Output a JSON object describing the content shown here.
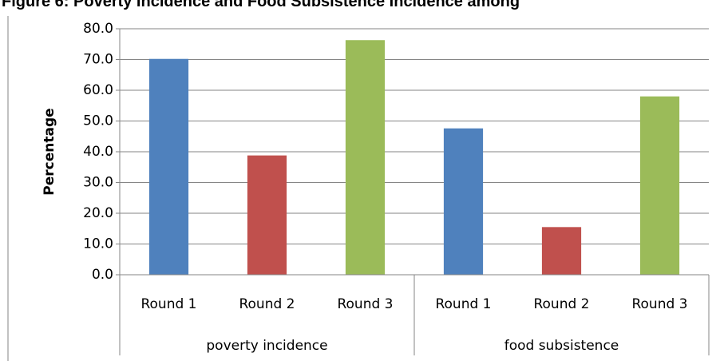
{
  "chart_data": {
    "type": "grouped-bar",
    "title": "Figure 6: Poverty Incidence and Food Subsistence Incidence among",
    "y_label": "Percentage",
    "groups": [
      "poverty incidence",
      "food subsistence"
    ],
    "categories": [
      "Round 1",
      "Round 2",
      "Round 3"
    ],
    "colors": [
      "#4f81bd",
      "#c0504d",
      "#9bbb59"
    ],
    "values": [
      [
        70.2,
        38.8,
        76.3
      ],
      [
        47.6,
        15.5,
        58.0
      ]
    ],
    "ylim": [
      0,
      80
    ],
    "yticks": [
      {
        "value": 0,
        "label": "0.0"
      },
      {
        "value": 10,
        "label": "10.0"
      },
      {
        "value": 20,
        "label": "20.0"
      },
      {
        "value": 30,
        "label": "30.0"
      },
      {
        "value": 40,
        "label": "40.0"
      },
      {
        "value": 50,
        "label": "50.0"
      },
      {
        "value": 60,
        "label": "60.0"
      },
      {
        "value": 70,
        "label": "70.0"
      },
      {
        "value": 80,
        "label": "80.0"
      }
    ],
    "grid": true
  }
}
